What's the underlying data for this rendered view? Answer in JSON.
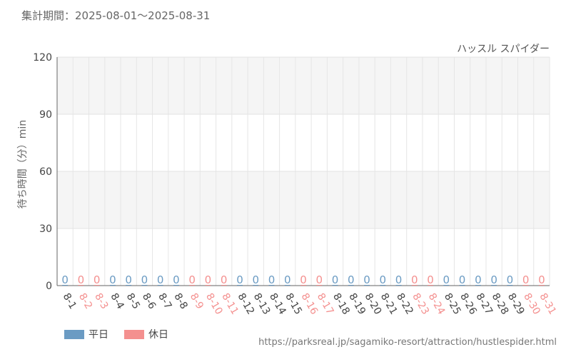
{
  "period_label": "集計期間：2025-08-01～2025-08-31",
  "attraction_name": "ハッスル スパイダー",
  "source_url": "https://parksreal.jp/sagamiko-resort/attraction/hustlespider.html",
  "chart_data": {
    "type": "bar",
    "ylabel": "待ち時間（分）min",
    "ylim": [
      0,
      120
    ],
    "yticks": [
      0,
      30,
      60,
      90,
      120
    ],
    "categories": [
      "8-1",
      "8-2",
      "8-3",
      "8-4",
      "8-5",
      "8-6",
      "8-7",
      "8-8",
      "8-9",
      "8-10",
      "8-11",
      "8-12",
      "8-13",
      "8-14",
      "8-15",
      "8-16",
      "8-17",
      "8-18",
      "8-19",
      "8-20",
      "8-21",
      "8-22",
      "8-23",
      "8-24",
      "8-25",
      "8-26",
      "8-27",
      "8-28",
      "8-29",
      "8-30",
      "8-31"
    ],
    "day_type": [
      "weekday",
      "holiday",
      "holiday",
      "weekday",
      "weekday",
      "weekday",
      "weekday",
      "weekday",
      "holiday",
      "holiday",
      "holiday",
      "weekday",
      "weekday",
      "weekday",
      "weekday",
      "holiday",
      "holiday",
      "weekday",
      "weekday",
      "weekday",
      "weekday",
      "weekday",
      "holiday",
      "holiday",
      "weekday",
      "weekday",
      "weekday",
      "weekday",
      "weekday",
      "holiday",
      "holiday"
    ],
    "values": [
      0,
      0,
      0,
      0,
      0,
      0,
      0,
      0,
      0,
      0,
      0,
      0,
      0,
      0,
      0,
      0,
      0,
      0,
      0,
      0,
      0,
      0,
      0,
      0,
      0,
      0,
      0,
      0,
      0,
      0,
      0
    ],
    "series": [
      {
        "name": "平日",
        "color": "#6b9bc3"
      },
      {
        "name": "休日",
        "color": "#f4908f"
      }
    ],
    "grid": true
  }
}
